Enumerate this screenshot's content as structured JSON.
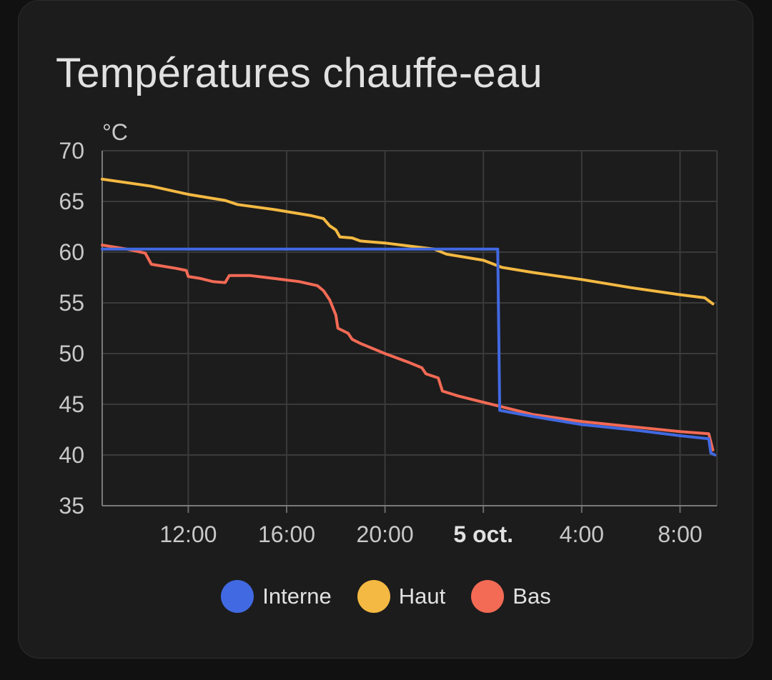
{
  "card": {
    "title": "Températures chauffe-eau"
  },
  "chart_data": {
    "type": "line",
    "title": "Températures chauffe-eau",
    "ylabel": "°C",
    "xlabel": "",
    "ylim": [
      35,
      70
    ],
    "yticks": [
      70,
      65,
      60,
      55,
      50,
      45,
      40,
      35
    ],
    "xlim": [
      "2023-10-04 08:30",
      "2023-10-05 09:30"
    ],
    "xticks": [
      {
        "label": "12:00",
        "time": "2023-10-04 12:00",
        "bold": false
      },
      {
        "label": "16:00",
        "time": "2023-10-04 16:00",
        "bold": false
      },
      {
        "label": "20:00",
        "time": "2023-10-04 20:00",
        "bold": false
      },
      {
        "label": "5 oct.",
        "time": "2023-10-05 00:00",
        "bold": true
      },
      {
        "label": "4:00",
        "time": "2023-10-05 04:00",
        "bold": false
      },
      {
        "label": "8:00",
        "time": "2023-10-05 08:00",
        "bold": false
      }
    ],
    "grid": true,
    "legend": "bottom-center",
    "series": [
      {
        "name": "Haut",
        "color": "#f4b942",
        "points": [
          [
            "2023-10-04 08:30",
            67.2
          ],
          [
            "2023-10-04 10:30",
            66.5
          ],
          [
            "2023-10-04 12:00",
            65.7
          ],
          [
            "2023-10-04 13:30",
            65.1
          ],
          [
            "2023-10-04 14:00",
            64.7
          ],
          [
            "2023-10-04 15:30",
            64.2
          ],
          [
            "2023-10-04 17:00",
            63.6
          ],
          [
            "2023-10-04 17:30",
            63.3
          ],
          [
            "2023-10-04 17:45",
            62.6
          ],
          [
            "2023-10-04 18:00",
            62.2
          ],
          [
            "2023-10-04 18:10",
            61.5
          ],
          [
            "2023-10-04 18:40",
            61.4
          ],
          [
            "2023-10-04 19:00",
            61.1
          ],
          [
            "2023-10-04 20:00",
            60.9
          ],
          [
            "2023-10-04 21:00",
            60.6
          ],
          [
            "2023-10-04 22:00",
            60.3
          ],
          [
            "2023-10-04 22:30",
            59.8
          ],
          [
            "2023-10-05 00:00",
            59.2
          ],
          [
            "2023-10-05 00:45",
            58.5
          ],
          [
            "2023-10-05 02:00",
            58.0
          ],
          [
            "2023-10-05 04:00",
            57.3
          ],
          [
            "2023-10-05 06:00",
            56.5
          ],
          [
            "2023-10-05 08:00",
            55.8
          ],
          [
            "2023-10-05 09:00",
            55.5
          ],
          [
            "2023-10-05 09:20",
            54.9
          ]
        ]
      },
      {
        "name": "Bas",
        "color": "#f36a55",
        "points": [
          [
            "2023-10-04 08:30",
            60.7
          ],
          [
            "2023-10-04 09:30",
            60.3
          ],
          [
            "2023-10-04 10:15",
            59.9
          ],
          [
            "2023-10-04 10:30",
            58.8
          ],
          [
            "2023-10-04 11:30",
            58.4
          ],
          [
            "2023-10-04 11:55",
            58.2
          ],
          [
            "2023-10-04 12:00",
            57.6
          ],
          [
            "2023-10-04 12:30",
            57.4
          ],
          [
            "2023-10-04 13:00",
            57.1
          ],
          [
            "2023-10-04 13:30",
            57.0
          ],
          [
            "2023-10-04 13:40",
            57.7
          ],
          [
            "2023-10-04 14:30",
            57.7
          ],
          [
            "2023-10-04 15:30",
            57.4
          ],
          [
            "2023-10-04 16:30",
            57.1
          ],
          [
            "2023-10-04 17:15",
            56.7
          ],
          [
            "2023-10-04 17:30",
            56.2
          ],
          [
            "2023-10-04 17:45",
            55.3
          ],
          [
            "2023-10-04 18:00",
            53.8
          ],
          [
            "2023-10-04 18:05",
            52.5
          ],
          [
            "2023-10-04 18:30",
            52.0
          ],
          [
            "2023-10-04 18:40",
            51.4
          ],
          [
            "2023-10-04 19:00",
            51.0
          ],
          [
            "2023-10-04 20:00",
            50.0
          ],
          [
            "2023-10-04 21:00",
            49.1
          ],
          [
            "2023-10-04 21:30",
            48.6
          ],
          [
            "2023-10-04 21:40",
            48.0
          ],
          [
            "2023-10-04 22:10",
            47.6
          ],
          [
            "2023-10-04 22:20",
            46.3
          ],
          [
            "2023-10-04 23:00",
            45.8
          ],
          [
            "2023-10-05 00:00",
            45.2
          ],
          [
            "2023-10-05 00:40",
            44.8
          ],
          [
            "2023-10-05 02:00",
            44.0
          ],
          [
            "2023-10-05 04:00",
            43.3
          ],
          [
            "2023-10-05 06:00",
            42.8
          ],
          [
            "2023-10-05 08:00",
            42.3
          ],
          [
            "2023-10-05 09:10",
            42.1
          ],
          [
            "2023-10-05 09:20",
            40.5
          ]
        ]
      },
      {
        "name": "Interne",
        "color": "#4169e1",
        "points": [
          [
            "2023-10-04 08:30",
            60.3
          ],
          [
            "2023-10-04 12:00",
            60.3
          ],
          [
            "2023-10-04 16:00",
            60.3
          ],
          [
            "2023-10-04 20:00",
            60.3
          ],
          [
            "2023-10-05 00:00",
            60.3
          ],
          [
            "2023-10-05 00:35",
            60.3
          ],
          [
            "2023-10-05 00:40",
            44.4
          ],
          [
            "2023-10-05 02:00",
            43.8
          ],
          [
            "2023-10-05 04:00",
            43.0
          ],
          [
            "2023-10-05 06:00",
            42.5
          ],
          [
            "2023-10-05 08:00",
            41.9
          ],
          [
            "2023-10-05 09:10",
            41.6
          ],
          [
            "2023-10-05 09:15",
            40.2
          ],
          [
            "2023-10-05 09:25",
            40.0
          ]
        ]
      }
    ],
    "legend_order": [
      "Interne",
      "Haut",
      "Bas"
    ]
  }
}
